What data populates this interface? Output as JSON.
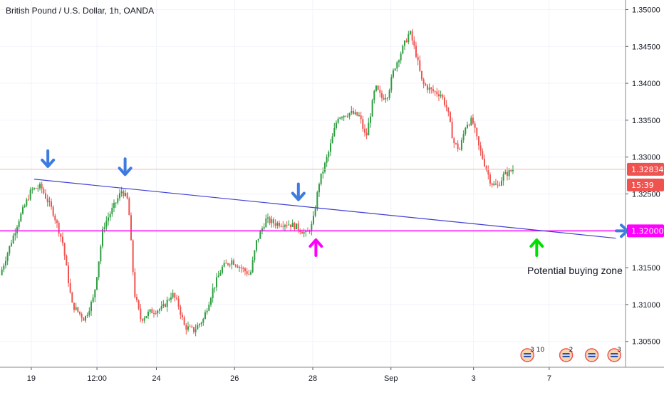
{
  "header": {
    "title": "British Pound / U.S. Dollar, 1h, OANDA"
  },
  "colors": {
    "up": "#26a69a",
    "up_body": "#2e9d40",
    "down": "#ef5350",
    "grid": "#f0f3fa",
    "trendline": "#3f3fd6",
    "support": "#ff00ff",
    "arrow_blue": "#3d7be0",
    "arrow_magenta": "#ff00ff",
    "arrow_green": "#00e000",
    "price_badge": "#ef5350",
    "level_badge": "#ff00ff",
    "hline": "#f7b5b5"
  },
  "chart_data": {
    "type": "candlestick",
    "title": "British Pound / U.S. Dollar, 1h, OANDA",
    "ylim": [
      1.3015,
      1.3513
    ],
    "y_ticks": [
      "1.35000",
      "1.34500",
      "1.34000",
      "1.33500",
      "1.33000",
      "1.32500",
      "1.32000",
      "1.31500",
      "1.31000",
      "1.30500"
    ],
    "x_ticks": [
      {
        "label": "19",
        "pos": 0.05
      },
      {
        "label": "12:00",
        "pos": 0.155
      },
      {
        "label": "24",
        "pos": 0.25
      },
      {
        "label": "26",
        "pos": 0.375
      },
      {
        "label": "28",
        "pos": 0.5
      },
      {
        "label": "Sep",
        "pos": 0.625
      },
      {
        "label": "3",
        "pos": 0.757
      },
      {
        "label": "7",
        "pos": 0.878
      }
    ],
    "close_path": [
      [
        0.0,
        1.314
      ],
      [
        0.03,
        1.3215
      ],
      [
        0.05,
        1.3255
      ],
      [
        0.065,
        1.326
      ],
      [
        0.085,
        1.3225
      ],
      [
        0.1,
        1.3185
      ],
      [
        0.115,
        1.31
      ],
      [
        0.135,
        1.308
      ],
      [
        0.15,
        1.311
      ],
      [
        0.165,
        1.3205
      ],
      [
        0.18,
        1.323
      ],
      [
        0.195,
        1.3255
      ],
      [
        0.205,
        1.324
      ],
      [
        0.215,
        1.3115
      ],
      [
        0.225,
        1.308
      ],
      [
        0.24,
        1.309
      ],
      [
        0.26,
        1.3095
      ],
      [
        0.275,
        1.3115
      ],
      [
        0.285,
        1.31
      ],
      [
        0.295,
        1.307
      ],
      [
        0.31,
        1.3065
      ],
      [
        0.325,
        1.308
      ],
      [
        0.34,
        1.312
      ],
      [
        0.355,
        1.315
      ],
      [
        0.37,
        1.316
      ],
      [
        0.385,
        1.315
      ],
      [
        0.4,
        1.314
      ],
      [
        0.41,
        1.3185
      ],
      [
        0.425,
        1.3215
      ],
      [
        0.44,
        1.321
      ],
      [
        0.46,
        1.321
      ],
      [
        0.475,
        1.3205
      ],
      [
        0.49,
        1.3195
      ],
      [
        0.5,
        1.321
      ],
      [
        0.51,
        1.3265
      ],
      [
        0.525,
        1.3305
      ],
      [
        0.54,
        1.3355
      ],
      [
        0.56,
        1.336
      ],
      [
        0.575,
        1.3355
      ],
      [
        0.585,
        1.3325
      ],
      [
        0.6,
        1.3395
      ],
      [
        0.61,
        1.338
      ],
      [
        0.62,
        1.3385
      ],
      [
        0.63,
        1.342
      ],
      [
        0.645,
        1.345
      ],
      [
        0.655,
        1.347
      ],
      [
        0.665,
        1.344
      ],
      [
        0.675,
        1.34
      ],
      [
        0.69,
        1.339
      ],
      [
        0.705,
        1.3385
      ],
      [
        0.715,
        1.3365
      ],
      [
        0.725,
        1.332
      ],
      [
        0.735,
        1.331
      ],
      [
        0.745,
        1.3345
      ],
      [
        0.755,
        1.335
      ],
      [
        0.765,
        1.3315
      ],
      [
        0.775,
        1.329
      ],
      [
        0.785,
        1.3265
      ],
      [
        0.795,
        1.326
      ],
      [
        0.805,
        1.3275
      ],
      [
        0.815,
        1.328
      ],
      [
        0.82,
        1.32834
      ]
    ],
    "current_price": "1.32834",
    "countdown": "15:39",
    "support_level": "1.32000",
    "support_value": 1.32,
    "trendline": {
      "x1": 0.0546,
      "y1": 1.327,
      "x2": 0.9844,
      "y2": 1.319
    },
    "annotations": [
      {
        "type": "arrow-down",
        "color": "blue",
        "x": 0.0765,
        "y": 1.3295
      },
      {
        "type": "arrow-down",
        "color": "blue",
        "x": 0.2,
        "y": 1.3284
      },
      {
        "type": "arrow-down",
        "color": "blue",
        "x": 0.477,
        "y": 1.325
      },
      {
        "type": "arrow-up",
        "color": "magenta",
        "x": 0.505,
        "y": 1.318
      },
      {
        "type": "arrow-up",
        "color": "green",
        "x": 0.858,
        "y": 1.318
      }
    ],
    "annotation_text": "Potential buying zone",
    "event_badges": [
      {
        "x": 0.843,
        "label": "3",
        "sublabel": "10"
      },
      {
        "x": 0.905,
        "label": "2"
      },
      {
        "x": 0.946
      },
      {
        "x": 0.982,
        "label": "3"
      }
    ]
  }
}
